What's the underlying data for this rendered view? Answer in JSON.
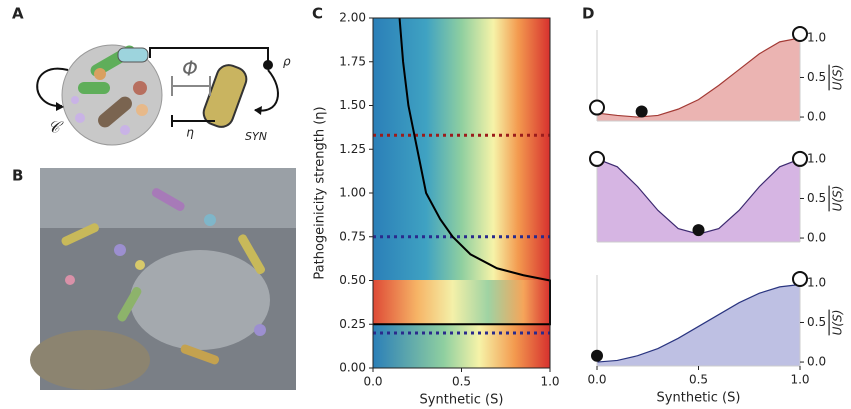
{
  "panel_labels": [
    "A",
    "B",
    "C",
    "D"
  ],
  "diagram": {
    "phi": "Φ",
    "eta": "η",
    "rho": "ρ",
    "syn": "SYN",
    "community": "𝒞"
  },
  "chart_data": [
    {
      "type": "heatmap",
      "xlabel": "Synthetic (S)",
      "ylabel": "Pathogeinicity strength (η)",
      "xlim": [
        0,
        1
      ],
      "ylim": [
        0,
        2
      ],
      "xticks": [
        {
          "value": 0,
          "label": "0.0"
        },
        {
          "value": 0.5,
          "label": "0.5"
        },
        {
          "value": 1,
          "label": "1.0"
        }
      ],
      "yticks": [
        {
          "value": 0,
          "label": "0.00"
        },
        {
          "value": 0.25,
          "label": "0.25"
        },
        {
          "value": 0.5,
          "label": "0.50"
        },
        {
          "value": 0.75,
          "label": "0.75"
        },
        {
          "value": 1,
          "label": "1.00"
        },
        {
          "value": 1.25,
          "label": "1.25"
        },
        {
          "value": 1.5,
          "label": "1.50"
        },
        {
          "value": 1.75,
          "label": "1.75"
        },
        {
          "value": 2,
          "label": "2.00"
        }
      ],
      "curve": {
        "color": "#000000",
        "x": [
          0.15,
          0.17,
          0.2,
          0.25,
          0.3,
          0.38,
          0.45,
          0.55,
          0.7,
          0.85,
          1.0,
          1.0,
          0.0
        ],
        "y": [
          2.0,
          1.75,
          1.5,
          1.25,
          1.0,
          0.85,
          0.75,
          0.65,
          0.57,
          0.53,
          0.5,
          0.25,
          0.25
        ]
      },
      "hlines": [
        {
          "value": 1.33,
          "color": "#9b1c1c"
        },
        {
          "value": 0.75,
          "color": "#2a2a8c"
        },
        {
          "value": 0.2,
          "color": "#2a2a8c"
        }
      ]
    },
    {
      "type": "area",
      "color": "#e8a7a4",
      "line_color": "#a33a35",
      "ylabel": "U(S)",
      "xlim": [
        0,
        1
      ],
      "ylim": [
        -0.05,
        1.1
      ],
      "yticks": [
        {
          "value": 0,
          "label": "0.0"
        },
        {
          "value": 0.5,
          "label": "0.5"
        },
        {
          "value": 1,
          "label": "1.0"
        }
      ],
      "x": [
        0,
        0.1,
        0.2,
        0.3,
        0.4,
        0.5,
        0.6,
        0.7,
        0.8,
        0.9,
        1.0
      ],
      "values": [
        0.05,
        0.02,
        0.0,
        0.02,
        0.1,
        0.22,
        0.4,
        0.6,
        0.8,
        0.95,
        1.0
      ],
      "open_points": {
        "x": [
          0,
          1
        ],
        "y": [
          0.12,
          1.05
        ]
      },
      "filled_points": {
        "x": [
          0.22
        ],
        "y": [
          0.07
        ]
      }
    },
    {
      "type": "area",
      "color": "#cfa8de",
      "line_color": "#3d2a70",
      "ylabel": "U(S)",
      "xlim": [
        0,
        1
      ],
      "ylim": [
        -0.05,
        1.1
      ],
      "yticks": [
        {
          "value": 0,
          "label": "0.0"
        },
        {
          "value": 0.5,
          "label": "0.5"
        },
        {
          "value": 1,
          "label": "1.0"
        }
      ],
      "x": [
        0,
        0.1,
        0.2,
        0.3,
        0.4,
        0.5,
        0.6,
        0.7,
        0.8,
        0.9,
        1.0
      ],
      "values": [
        1.0,
        0.9,
        0.65,
        0.35,
        0.12,
        0.05,
        0.12,
        0.35,
        0.65,
        0.9,
        1.0
      ],
      "open_points": {
        "x": [
          0,
          1
        ],
        "y": [
          1.0,
          1.0
        ]
      },
      "filled_points": {
        "x": [
          0.5
        ],
        "y": [
          0.1
        ]
      }
    },
    {
      "type": "area",
      "color": "#b3b5de",
      "line_color": "#2a3580",
      "ylabel": "U(S)",
      "xlabel": "Synthetic (S)",
      "xlim": [
        0,
        1
      ],
      "ylim": [
        -0.05,
        1.1
      ],
      "xticks": [
        {
          "value": 0,
          "label": "0.0"
        },
        {
          "value": 0.5,
          "label": "0.5"
        },
        {
          "value": 1,
          "label": "1.0"
        }
      ],
      "yticks": [
        {
          "value": 0,
          "label": "0.0"
        },
        {
          "value": 0.5,
          "label": "0.5"
        },
        {
          "value": 1,
          "label": "1.0"
        }
      ],
      "x": [
        0,
        0.1,
        0.2,
        0.3,
        0.4,
        0.5,
        0.6,
        0.7,
        0.8,
        0.9,
        1.0
      ],
      "values": [
        0.0,
        0.02,
        0.08,
        0.17,
        0.3,
        0.45,
        0.6,
        0.75,
        0.87,
        0.95,
        0.98
      ],
      "open_points": {
        "x": [
          1
        ],
        "y": [
          1.05
        ]
      },
      "filled_points": {
        "x": [
          0
        ],
        "y": [
          0.08
        ]
      }
    }
  ]
}
